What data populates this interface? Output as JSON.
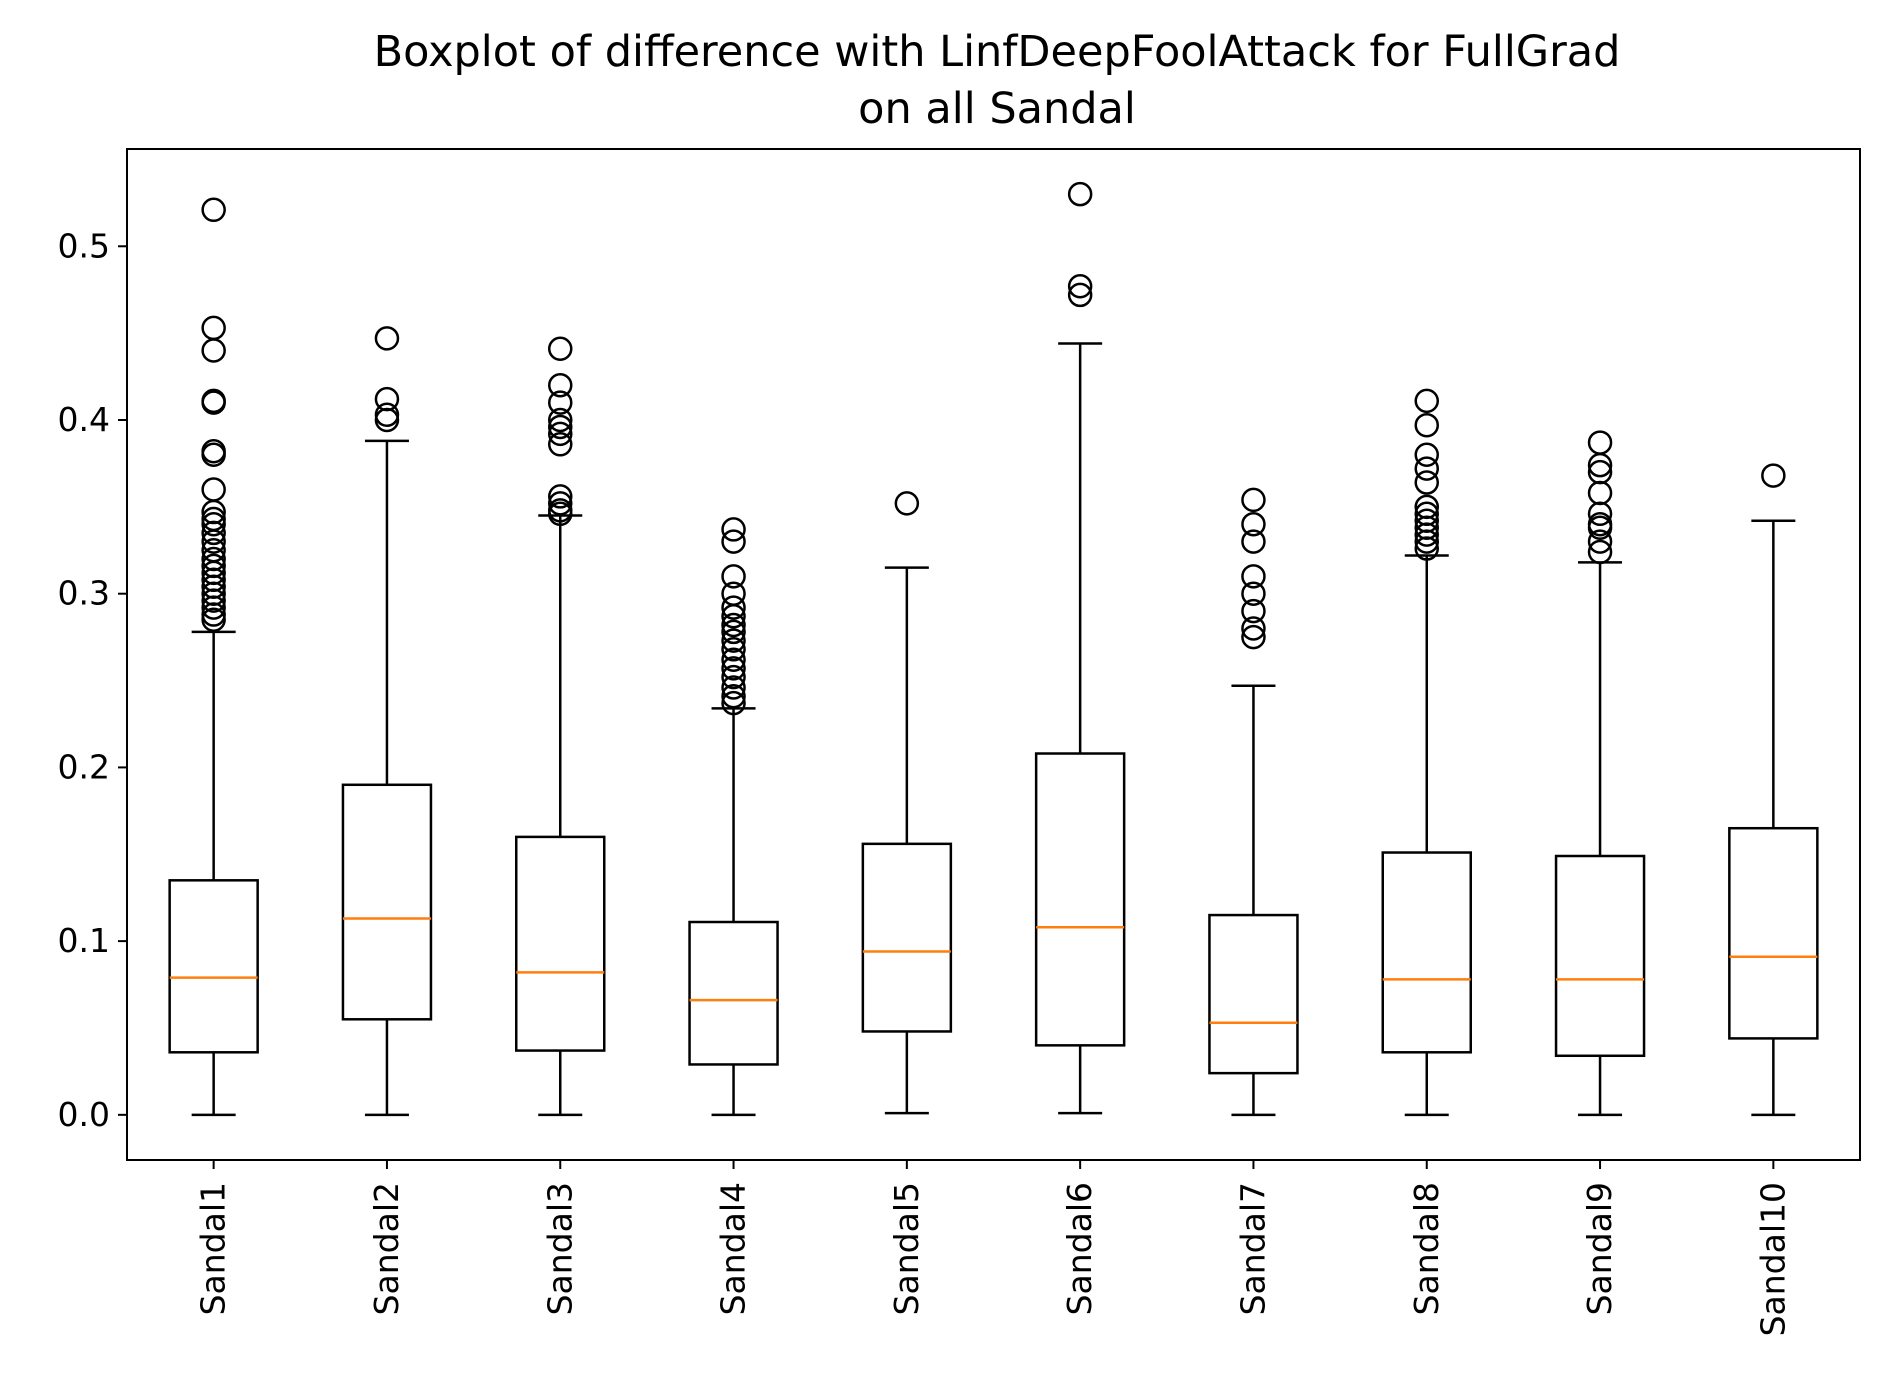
{
  "chart_data": {
    "type": "boxplot",
    "title": [
      "Boxplot of difference with LinfDeepFoolAttack for FullGrad",
      "on all Sandal"
    ],
    "xlabel": "",
    "ylabel": "",
    "ylim": [
      -0.026,
      0.556
    ],
    "yticks": [
      0.0,
      0.1,
      0.2,
      0.3,
      0.4,
      0.5
    ],
    "ytick_labels": [
      "0.0",
      "0.1",
      "0.2",
      "0.3",
      "0.4",
      "0.5"
    ],
    "categories": [
      "Sandal1",
      "Sandal2",
      "Sandal3",
      "Sandal4",
      "Sandal5",
      "Sandal6",
      "Sandal7",
      "Sandal8",
      "Sandal9",
      "Sandal10"
    ],
    "box_color": "#000000",
    "median_color": "#ff7f0e",
    "grid": false,
    "boxes": [
      {
        "whislo": 0.0,
        "q1": 0.036,
        "med": 0.079,
        "q3": 0.135,
        "whishi": 0.278,
        "fliers": [
          0.521,
          0.453,
          0.44,
          0.411,
          0.41,
          0.382,
          0.38,
          0.36,
          0.347,
          0.343,
          0.34,
          0.335,
          0.33,
          0.325,
          0.32,
          0.316,
          0.312,
          0.308,
          0.304,
          0.3,
          0.296,
          0.292,
          0.288,
          0.285
        ]
      },
      {
        "whislo": 0.0,
        "q1": 0.055,
        "med": 0.113,
        "q3": 0.19,
        "whishi": 0.388,
        "fliers": [
          0.447,
          0.412,
          0.403,
          0.4
        ]
      },
      {
        "whislo": 0.0,
        "q1": 0.037,
        "med": 0.082,
        "q3": 0.16,
        "whishi": 0.345,
        "fliers": [
          0.441,
          0.42,
          0.41,
          0.4,
          0.396,
          0.392,
          0.386,
          0.356,
          0.352,
          0.348,
          0.346
        ]
      },
      {
        "whislo": 0.0,
        "q1": 0.029,
        "med": 0.066,
        "q3": 0.111,
        "whishi": 0.234,
        "fliers": [
          0.337,
          0.33,
          0.31,
          0.3,
          0.292,
          0.287,
          0.282,
          0.278,
          0.273,
          0.268,
          0.262,
          0.257,
          0.252,
          0.246,
          0.241,
          0.237
        ]
      },
      {
        "whislo": 0.001,
        "q1": 0.048,
        "med": 0.094,
        "q3": 0.156,
        "whishi": 0.315,
        "fliers": [
          0.352
        ]
      },
      {
        "whislo": 0.001,
        "q1": 0.04,
        "med": 0.108,
        "q3": 0.208,
        "whishi": 0.444,
        "fliers": [
          0.53,
          0.477,
          0.472
        ]
      },
      {
        "whislo": 0.0,
        "q1": 0.024,
        "med": 0.053,
        "q3": 0.115,
        "whishi": 0.247,
        "fliers": [
          0.354,
          0.34,
          0.33,
          0.31,
          0.3,
          0.29,
          0.28,
          0.275
        ]
      },
      {
        "whislo": 0.0,
        "q1": 0.036,
        "med": 0.078,
        "q3": 0.151,
        "whishi": 0.322,
        "fliers": [
          0.411,
          0.397,
          0.38,
          0.372,
          0.364,
          0.35,
          0.346,
          0.342,
          0.338,
          0.334,
          0.33,
          0.326
        ]
      },
      {
        "whislo": 0.0,
        "q1": 0.034,
        "med": 0.078,
        "q3": 0.149,
        "whishi": 0.318,
        "fliers": [
          0.387,
          0.374,
          0.37,
          0.358,
          0.346,
          0.34,
          0.338,
          0.33,
          0.324
        ]
      },
      {
        "whislo": 0.0,
        "q1": 0.044,
        "med": 0.091,
        "q3": 0.165,
        "whishi": 0.342,
        "fliers": [
          0.368
        ]
      }
    ]
  }
}
